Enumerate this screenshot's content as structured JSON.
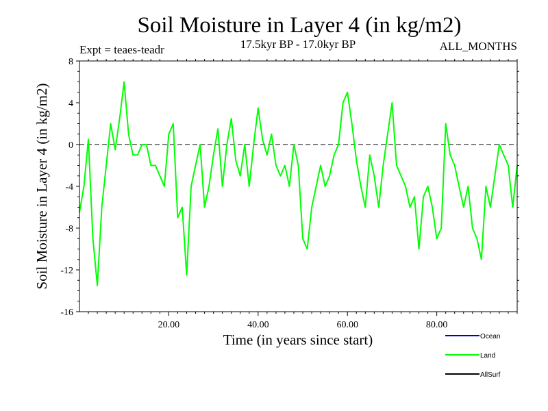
{
  "chart_data": {
    "type": "line",
    "title": "Soil Moisture in Layer 4 (in kg/m2)",
    "subtitle": "17.5kyr BP - 17.0kyr BP",
    "experiment_label": "Expt = teaes-teadr",
    "period_label": "ALL_MONTHS",
    "xlabel": "Time (in years since start)",
    "ylabel": "Soil Moisture in Layer 4 (in kg/m2)",
    "xlim": [
      0,
      98
    ],
    "ylim": [
      -16,
      8
    ],
    "x_ticks": [
      20,
      40,
      60,
      80
    ],
    "x_tick_labels": [
      "20.00",
      "40.00",
      "60.00",
      "80.00"
    ],
    "y_ticks": [
      8,
      4,
      0,
      -4,
      -8,
      -12,
      -16
    ],
    "y_tick_labels": [
      "8",
      "4",
      "0",
      "-4",
      "-8",
      "-12",
      "-16"
    ],
    "zero_line": true,
    "legend": [
      {
        "name": "Ocean",
        "color": "#0000cc"
      },
      {
        "name": "Land",
        "color": "#00ff00"
      },
      {
        "name": "AllSurf",
        "color": "#000000"
      }
    ],
    "series": [
      {
        "name": "Land",
        "color": "#00ff00",
        "x": [
          0,
          1,
          2,
          3,
          4,
          5,
          6,
          7,
          8,
          9,
          10,
          11,
          12,
          13,
          14,
          15,
          16,
          17,
          18,
          19,
          20,
          21,
          22,
          23,
          24,
          25,
          26,
          27,
          28,
          29,
          30,
          31,
          32,
          33,
          34,
          35,
          36,
          37,
          38,
          39,
          40,
          41,
          42,
          43,
          44,
          45,
          46,
          47,
          48,
          49,
          50,
          51,
          52,
          53,
          54,
          55,
          56,
          57,
          58,
          59,
          60,
          61,
          62,
          63,
          64,
          65,
          66,
          67,
          68,
          69,
          70,
          71,
          72,
          73,
          74,
          75,
          76,
          77,
          78,
          79,
          80,
          81,
          82,
          83,
          84,
          85,
          86,
          87,
          88,
          89,
          90,
          91,
          92,
          93,
          94,
          95,
          96,
          97,
          98
        ],
        "values": [
          -6.5,
          -4,
          0.5,
          -9,
          -13.5,
          -6,
          -2,
          2,
          -0.5,
          2.5,
          6,
          1,
          -1,
          -1,
          0,
          0,
          -2,
          -2,
          -3,
          -4,
          1,
          2,
          -7,
          -6,
          -12.5,
          -4,
          -2,
          0,
          -6,
          -4,
          -1,
          1.5,
          -4,
          0,
          2.5,
          -1.5,
          -3,
          0,
          -4,
          0,
          3.5,
          0.5,
          -1,
          1,
          -2,
          -3,
          -2,
          -4,
          0,
          -2,
          -9,
          -10,
          -6,
          -4,
          -2,
          -4,
          -3,
          -1,
          0,
          4,
          5,
          2,
          -1.5,
          -4,
          -6,
          -1,
          -3,
          -6,
          -2,
          1,
          4,
          -2,
          -3,
          -4,
          -6,
          -5,
          -10,
          -5,
          -4,
          -6,
          -9,
          -8,
          2,
          -1,
          -2,
          -4,
          -6,
          -4,
          -8,
          -9,
          -11,
          -4,
          -6,
          -3,
          0,
          -1,
          -2,
          -6,
          -2
        ]
      }
    ]
  }
}
